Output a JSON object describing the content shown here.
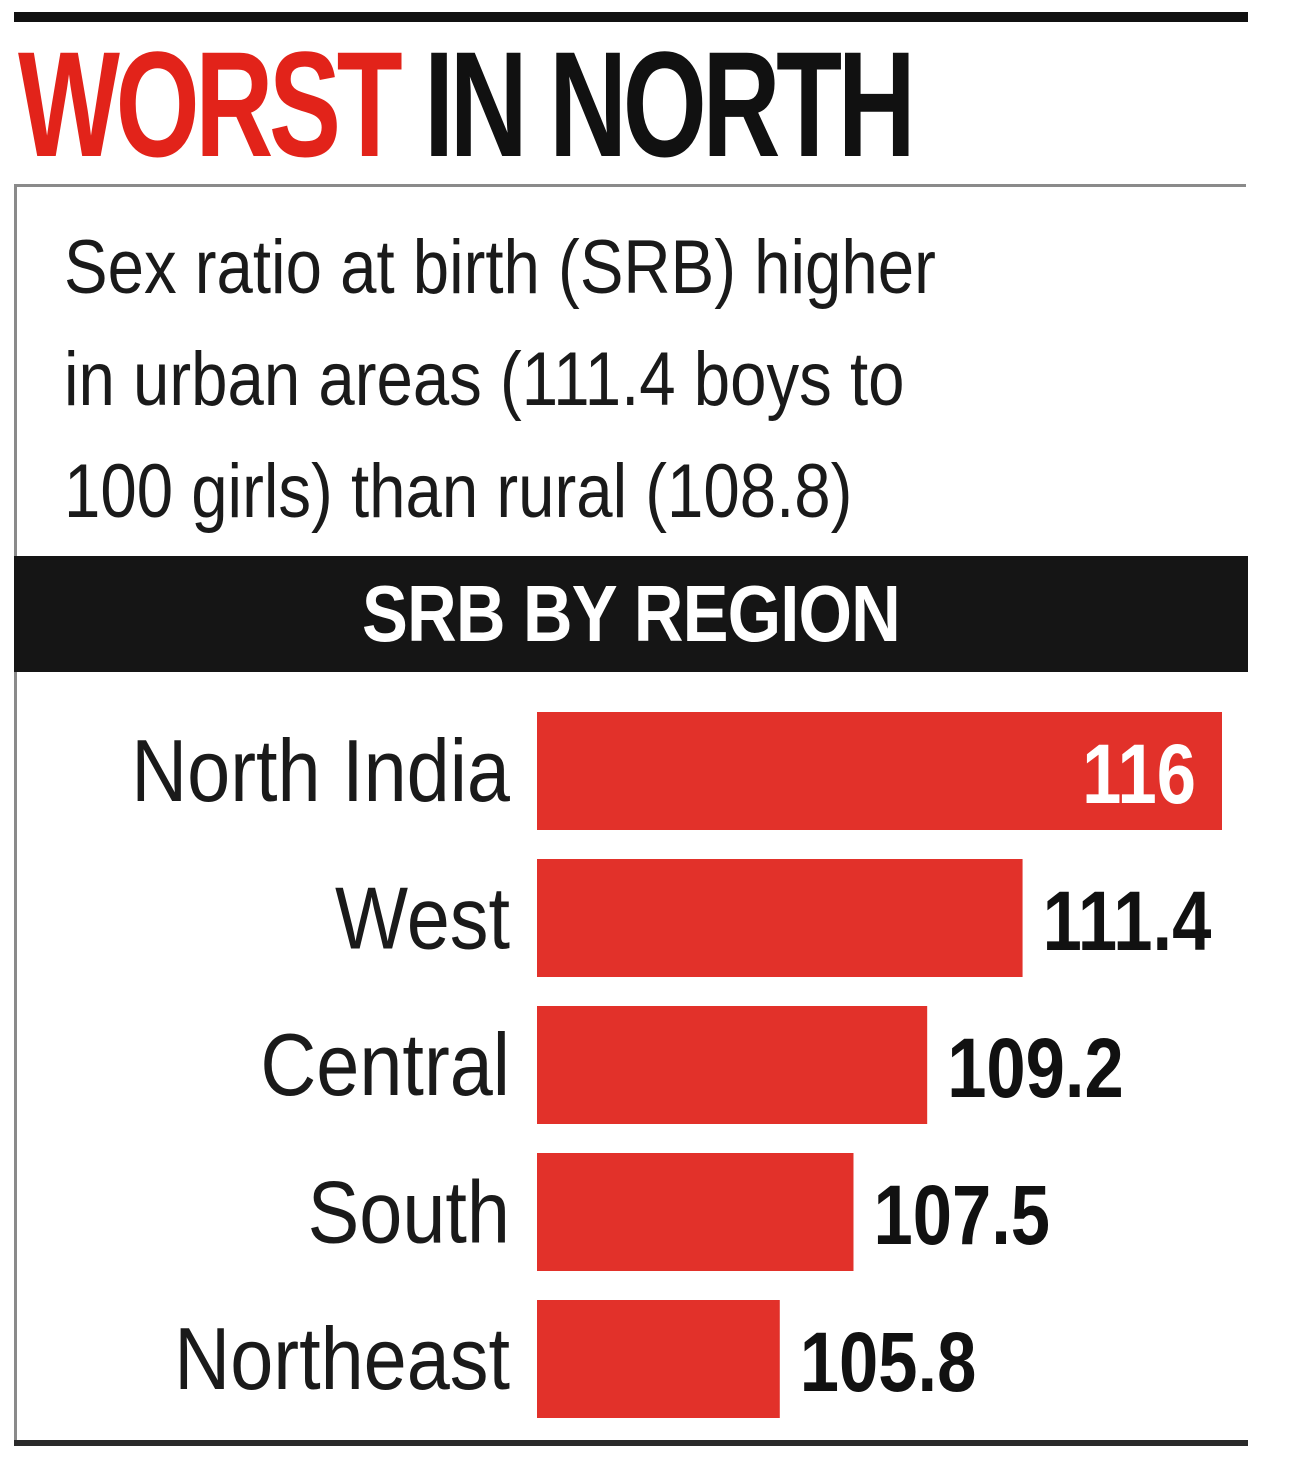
{
  "headline": {
    "red_part": "WORST",
    "black_part": "IN NORTH"
  },
  "subtitle": {
    "lines": [
      "Sex ratio at birth (SRB) higher",
      "in urban areas (111.4 boys to",
      "100 girls) than rural (108.8)"
    ]
  },
  "section_title": "SRB BY REGION",
  "colors": {
    "accent": "#e2231a",
    "bar": "#e2312a",
    "dark": "#151515"
  },
  "chart_data": {
    "type": "bar",
    "orientation": "horizontal",
    "title": "SRB BY REGION",
    "categories": [
      "North India",
      "West",
      "Central",
      "South",
      "Northeast"
    ],
    "values": [
      116,
      111.4,
      109.2,
      107.5,
      105.8
    ],
    "value_labels": [
      "116",
      "111.4",
      "109.2",
      "107.5",
      "105.8"
    ],
    "xlabel": "",
    "ylabel": "",
    "axis_visible": false,
    "grid": false,
    "legend": "none"
  }
}
